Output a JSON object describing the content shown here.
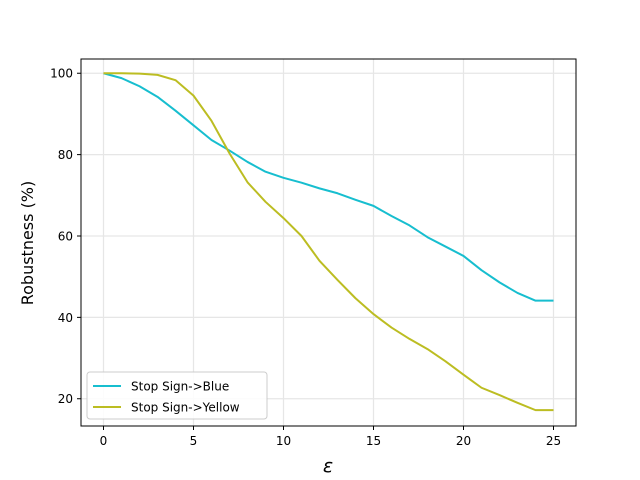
{
  "chart_data": {
    "type": "line",
    "title": "",
    "xlabel": "ε",
    "ylabel": "Robustness (%)",
    "xlim": [
      -1.25,
      26.25
    ],
    "ylim": [
      13.3,
      103.5
    ],
    "xticks": [
      0,
      5,
      10,
      15,
      20,
      25
    ],
    "yticks": [
      20,
      40,
      60,
      80,
      100
    ],
    "grid": true,
    "legend_position": "lower-left",
    "x": [
      0,
      1,
      2,
      3,
      4,
      5,
      6,
      7,
      8,
      9,
      10,
      11,
      12,
      13,
      14,
      15,
      16,
      17,
      18,
      19,
      20,
      21,
      22,
      23,
      24,
      25
    ],
    "series": [
      {
        "name": "Stop Sign->Blue",
        "color": "#17becf",
        "values": [
          100,
          98.8,
          96.8,
          94.2,
          90.8,
          87.2,
          83.6,
          81,
          78.2,
          75.8,
          74.3,
          73.1,
          71.7,
          70.5,
          68.9,
          67.4,
          64.9,
          62.6,
          59.7,
          57.4,
          55.1,
          51.6,
          48.6,
          46,
          44.1,
          44.1
        ]
      },
      {
        "name": "Stop Sign->Yellow",
        "color": "#bcbd22",
        "values": [
          100,
          100,
          99.9,
          99.6,
          98.3,
          94.5,
          88.3,
          80.3,
          73.2,
          68.4,
          64.4,
          60,
          53.9,
          49.2,
          44.7,
          40.8,
          37.5,
          34.7,
          32.2,
          29.2,
          25.9,
          22.7,
          20.9,
          19,
          17.2,
          17.2
        ]
      }
    ]
  }
}
